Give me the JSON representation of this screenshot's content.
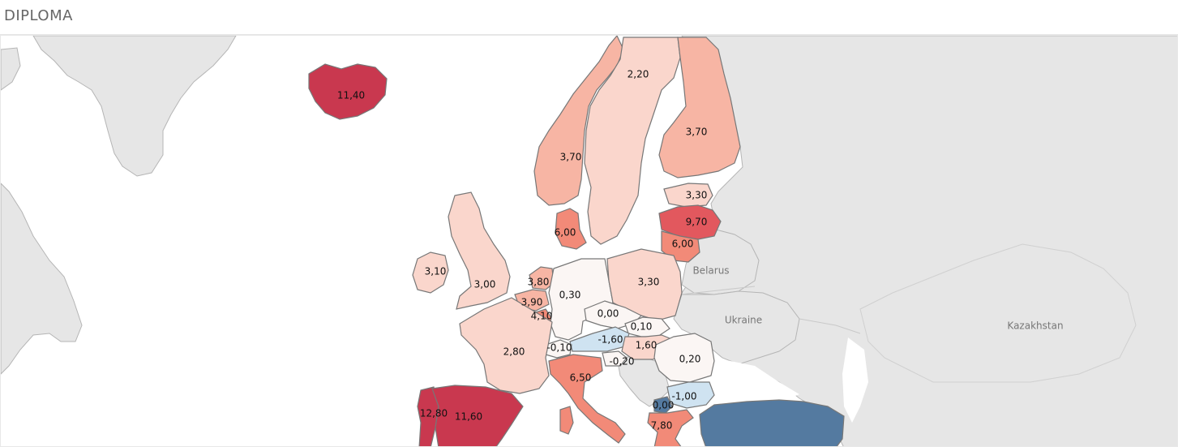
{
  "header": {
    "title": "DIPLOMA"
  },
  "map": {
    "type": "choropleth",
    "region": "Europe",
    "place_labels": {
      "belarus": "Belarus",
      "ukraine": "Ukraine",
      "kazakhstan": "Kazakhstan"
    },
    "colors": {
      "strong_red": "#c9384f",
      "red": "#e2585e",
      "salmon": "#f28a78",
      "light_salmon": "#f7b5a4",
      "pale_pink": "#fad6cc",
      "near_white": "#fbf6f4",
      "light_blue": "#cfe3f1",
      "dark_blue": "#547aa0",
      "background_land": "#e6e6e6"
    },
    "countries": [
      {
        "id": "iceland",
        "value": "11,40"
      },
      {
        "id": "sweden",
        "value": "2,20"
      },
      {
        "id": "finland",
        "value": "3,70"
      },
      {
        "id": "norway",
        "value": "3,70"
      },
      {
        "id": "estonia",
        "value": "3,30"
      },
      {
        "id": "latvia",
        "value": "9,70"
      },
      {
        "id": "denmark",
        "value": "6,00"
      },
      {
        "id": "lithuania",
        "value": "6,00"
      },
      {
        "id": "ireland",
        "value": "3,10"
      },
      {
        "id": "united-kingdom",
        "value": "3,00"
      },
      {
        "id": "netherlands",
        "value": "3,80"
      },
      {
        "id": "belgium",
        "value": "3,90"
      },
      {
        "id": "luxembourg",
        "value": "4,10"
      },
      {
        "id": "germany",
        "value": "0,30"
      },
      {
        "id": "poland",
        "value": "3,30"
      },
      {
        "id": "czechia",
        "value": "0,00"
      },
      {
        "id": "slovakia",
        "value": "0,10"
      },
      {
        "id": "austria",
        "value": "-1,60"
      },
      {
        "id": "hungary",
        "value": "1,60"
      },
      {
        "id": "switzerland",
        "value": "-0,10"
      },
      {
        "id": "france",
        "value": "2,80"
      },
      {
        "id": "slovenia",
        "value": "-0,20"
      },
      {
        "id": "romania",
        "value": "0,20"
      },
      {
        "id": "italy",
        "value": "6,50"
      },
      {
        "id": "bulgaria",
        "value": "-1,00"
      },
      {
        "id": "north-macedonia",
        "value": "0,00"
      },
      {
        "id": "portugal",
        "value": "12,80"
      },
      {
        "id": "spain",
        "value": "11,60"
      },
      {
        "id": "greece",
        "value": "7,80"
      },
      {
        "id": "turkey",
        "value": ""
      }
    ]
  }
}
